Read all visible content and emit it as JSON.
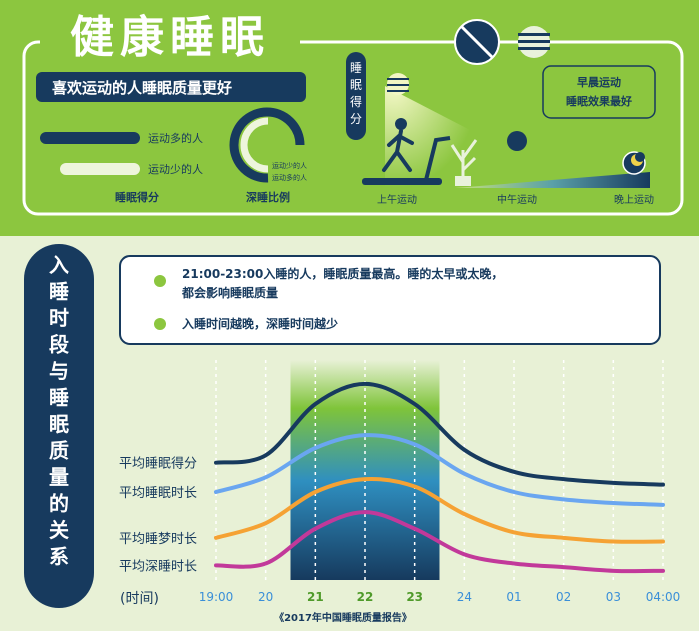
{
  "header": {
    "title": "健康睡眠",
    "subtitle": "喜欢运动的人睡眠质量更好"
  },
  "score_bars": {
    "more_label": "运动多的人",
    "less_label": "运动少的人",
    "caption": "睡眠得分"
  },
  "deep_sleep_ring": {
    "caption": "深睡比例",
    "inner_label_1": "运动少的人",
    "inner_label_2": "运动多的人"
  },
  "exercise_time": {
    "vertical_label": "睡眠得分",
    "times": [
      "上午运动",
      "中午运动",
      "晚上运动"
    ],
    "note_line1": "早晨运动",
    "note_line2": "睡眠效果最好"
  },
  "section2": {
    "vertical_title": "入睡时段与睡眠质量的关系",
    "bullet1_line1": "21:00-23:00入睡的人，睡眠质量最高。睡的太早或太晚，",
    "bullet1_line2": "都会影响睡眠质量",
    "bullet2": "入睡时间越晚，深睡时间越少",
    "source": "《2017年中国睡眠质量报告》"
  },
  "colors": {
    "lime": "#8cc63f",
    "navy": "#173a5e",
    "light_bg": "#e8f1d6",
    "blue_series": "#6aa6f0",
    "orange_series": "#f5a234",
    "magenta_series": "#c2399a"
  },
  "chart_data": {
    "type": "line",
    "xlabel": "(时间)",
    "x": [
      "19:00",
      "20",
      "21",
      "22",
      "23",
      "24",
      "01",
      "02",
      "03",
      "04:00"
    ],
    "highlight_range": [
      "21",
      "23"
    ],
    "series": [
      {
        "name": "平均睡眠得分",
        "color": "#173a5e",
        "values": [
          54,
          58,
          86,
          97,
          86,
          61,
          49,
          45,
          43,
          42
        ]
      },
      {
        "name": "平均睡眠时长",
        "color": "#6aa6f0",
        "values": [
          38,
          46,
          62,
          69,
          64,
          48,
          38,
          34,
          32,
          31
        ]
      },
      {
        "name": "平均睡梦时长",
        "color": "#f5a234",
        "values": [
          13,
          21,
          38,
          45,
          41,
          26,
          16,
          13,
          11,
          11
        ]
      },
      {
        "name": "平均深睡时长",
        "color": "#c2399a",
        "values": [
          -2,
          -1,
          18,
          27,
          18,
          4,
          -1,
          -3,
          -5,
          -5
        ]
      }
    ],
    "ylim": [
      -10,
      110
    ],
    "grid": "vertical-dashed"
  }
}
